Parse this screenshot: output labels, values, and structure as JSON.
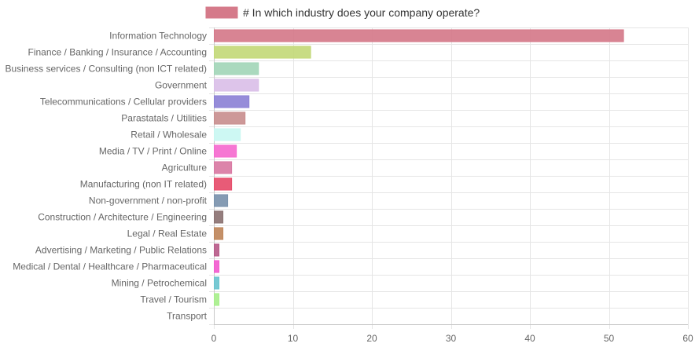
{
  "chart_data": {
    "type": "bar",
    "orientation": "horizontal",
    "legend": {
      "position": "top",
      "label": "# In which industry does your company operate?",
      "color": "#d57a8a"
    },
    "categories": [
      "Information Technology",
      "Finance / Banking / Insurance / Accounting",
      "Business services / Consulting (non ICT related)",
      "Government",
      "Telecommunications / Cellular providers",
      "Parastatals / Utilities",
      "Retail / Wholesale",
      "Media / TV / Print / Online",
      "Agriculture",
      "Manufacturing (non IT related)",
      "Non-government / non-profit",
      "Construction / Architecture / Engineering",
      "Legal / Real Estate",
      "Advertising / Marketing / Public Relations",
      "Medical / Dental / Healthcare / Pharmaceutical",
      "Mining / Petrochemical",
      "Travel / Tourism",
      "Transport"
    ],
    "series": [
      {
        "name": "# In which industry does your company operate?",
        "values": [
          51.8,
          12.2,
          5.6,
          5.6,
          4.4,
          3.9,
          3.3,
          2.8,
          2.2,
          2.2,
          1.7,
          1.1,
          1.1,
          0.6,
          0.6,
          0.6,
          0.6,
          0
        ]
      }
    ],
    "bar_colors": [
      "#d57a8a",
      "#c3d97a",
      "#a3d6b8",
      "#dabfe8",
      "#8d82d6",
      "#c98f8f",
      "#c9f7f2",
      "#f56bcf",
      "#d97aa3",
      "#e64d6b",
      "#7b93ad",
      "#8c7373",
      "#bf875c",
      "#b85c8a",
      "#f25ccf",
      "#6bc4cf",
      "#a8ef8c",
      "#cccccc"
    ],
    "xlim": [
      0,
      60
    ],
    "xticks": [
      "0",
      "10",
      "20",
      "30",
      "40",
      "50",
      "60"
    ],
    "grid": true
  }
}
